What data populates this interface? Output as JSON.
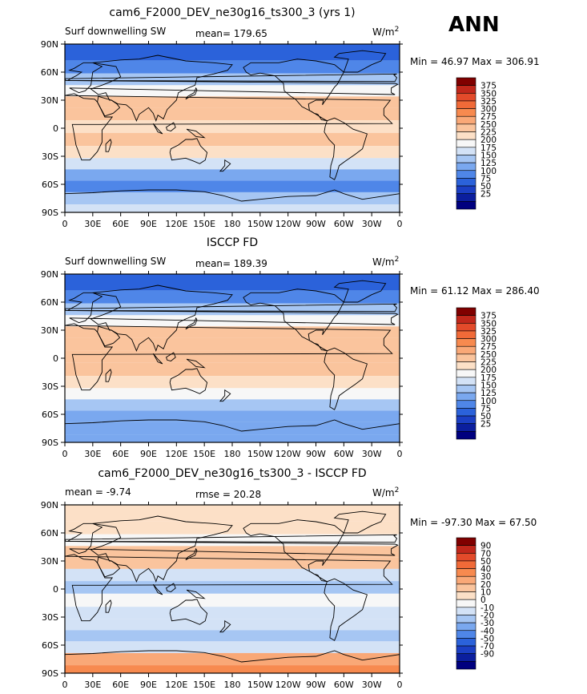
{
  "season": "ANN",
  "colorbars": {
    "abs": {
      "labels": [
        "375",
        "350",
        "325",
        "300",
        "275",
        "250",
        "225",
        "200",
        "175",
        "150",
        "125",
        "100",
        "75",
        "50",
        "25"
      ],
      "colors": [
        "#800000",
        "#c1271b",
        "#e34a2a",
        "#f06a38",
        "#f78a4f",
        "#f9a877",
        "#fac49d",
        "#fce0c7",
        "#f7f7f7",
        "#d3e2f6",
        "#a6c6f3",
        "#7aa8ef",
        "#4f86e8",
        "#2b62da",
        "#1b3fc4",
        "#0b1e9e",
        "#00007f"
      ]
    },
    "diff": {
      "labels": [
        "90",
        "70",
        "50",
        "40",
        "30",
        "20",
        "10",
        "0",
        "-10",
        "-20",
        "-30",
        "-40",
        "-50",
        "-70",
        "-90"
      ],
      "colors": [
        "#800000",
        "#c1271b",
        "#e34a2a",
        "#f06a38",
        "#f78a4f",
        "#f9a877",
        "#fac49d",
        "#fce0c7",
        "#f7f7f7",
        "#d3e2f6",
        "#a6c6f3",
        "#7aa8ef",
        "#4f86e8",
        "#2b62da",
        "#1b3fc4",
        "#0b1e9e",
        "#00007f"
      ]
    }
  },
  "chart_data": [
    {
      "type": "heatmap",
      "title": "cam6_F2000_DEV_ne30g16_ts300_3 (yrs 1)",
      "left_label": "Surf downwelling SW",
      "stat_text": "mean= 179.65",
      "units_text": "W/m",
      "units_sup": "2",
      "minmax_text": "Min =  46.97 Max = 306.91",
      "mean": 179.65,
      "min": 46.97,
      "max": 306.91,
      "x_ticks": [
        "0",
        "30E",
        "60E",
        "90E",
        "120E",
        "150E",
        "180",
        "150W",
        "120W",
        "90W",
        "60W",
        "30W",
        "0"
      ],
      "y_ticks": [
        "90N",
        "60N",
        "30N",
        "0",
        "30S",
        "60S",
        "90S"
      ],
      "band_values": [
        {
          "lat": 80,
          "value": 70
        },
        {
          "lat": 65,
          "value": 95
        },
        {
          "lat": 52,
          "value": 130
        },
        {
          "lat": 40,
          "value": 185
        },
        {
          "lat": 28,
          "value": 235
        },
        {
          "lat": 15,
          "value": 225
        },
        {
          "lat": 2,
          "value": 215
        },
        {
          "lat": -12,
          "value": 230
        },
        {
          "lat": -26,
          "value": 215
        },
        {
          "lat": -38,
          "value": 165
        },
        {
          "lat": -50,
          "value": 110
        },
        {
          "lat": -62,
          "value": 85
        },
        {
          "lat": -75,
          "value": 140
        },
        {
          "lat": -88,
          "value": 160
        }
      ]
    },
    {
      "type": "heatmap",
      "title": "ISCCP FD",
      "left_label": "Surf downwelling SW",
      "stat_text": "mean= 189.39",
      "units_text": "W/m",
      "units_sup": "2",
      "minmax_text": "Min =  61.12 Max = 286.40",
      "mean": 189.39,
      "min": 61.12,
      "max": 286.4,
      "x_ticks": [
        "0",
        "30E",
        "60E",
        "90E",
        "120E",
        "150E",
        "180",
        "150W",
        "120W",
        "90W",
        "60W",
        "30W",
        "0"
      ],
      "y_ticks": [
        "90N",
        "60N",
        "30N",
        "0",
        "30S",
        "60S",
        "90S"
      ],
      "band_values": [
        {
          "lat": 80,
          "value": 65
        },
        {
          "lat": 65,
          "value": 90
        },
        {
          "lat": 52,
          "value": 125
        },
        {
          "lat": 40,
          "value": 180
        },
        {
          "lat": 28,
          "value": 230
        },
        {
          "lat": 15,
          "value": 240
        },
        {
          "lat": 2,
          "value": 230
        },
        {
          "lat": -12,
          "value": 235
        },
        {
          "lat": -26,
          "value": 220
        },
        {
          "lat": -38,
          "value": 175
        },
        {
          "lat": -50,
          "value": 125
        },
        {
          "lat": -62,
          "value": 100
        },
        {
          "lat": -75,
          "value": 105
        },
        {
          "lat": -88,
          "value": 115
        }
      ]
    },
    {
      "type": "heatmap",
      "title": "cam6_F2000_DEV_ne30g16_ts300_3 - ISCCP FD",
      "left_label": "mean =   -9.74",
      "stat_text": "rmse =   20.28",
      "units_text": "W/m",
      "units_sup": "2",
      "minmax_text": "Min = -97.30 Max =  67.50",
      "mean": -9.74,
      "rmse": 20.28,
      "min": -97.3,
      "max": 67.5,
      "x_ticks": [
        "0",
        "30E",
        "60E",
        "90E",
        "120E",
        "150E",
        "180",
        "150W",
        "120W",
        "90W",
        "60W",
        "30W",
        "0"
      ],
      "y_ticks": [
        "90N",
        "60N",
        "30N",
        "0",
        "30S",
        "60S",
        "90S"
      ],
      "band_values": [
        {
          "lat": 80,
          "value": 5
        },
        {
          "lat": 65,
          "value": 5
        },
        {
          "lat": 52,
          "value": -10
        },
        {
          "lat": 40,
          "value": 10
        },
        {
          "lat": 28,
          "value": 15
        },
        {
          "lat": 15,
          "value": -15
        },
        {
          "lat": 2,
          "value": -25
        },
        {
          "lat": -12,
          "value": -10
        },
        {
          "lat": -26,
          "value": -15
        },
        {
          "lat": -38,
          "value": -20
        },
        {
          "lat": -50,
          "value": -25
        },
        {
          "lat": -62,
          "value": -20
        },
        {
          "lat": -75,
          "value": 25
        },
        {
          "lat": -88,
          "value": 35
        }
      ]
    }
  ]
}
